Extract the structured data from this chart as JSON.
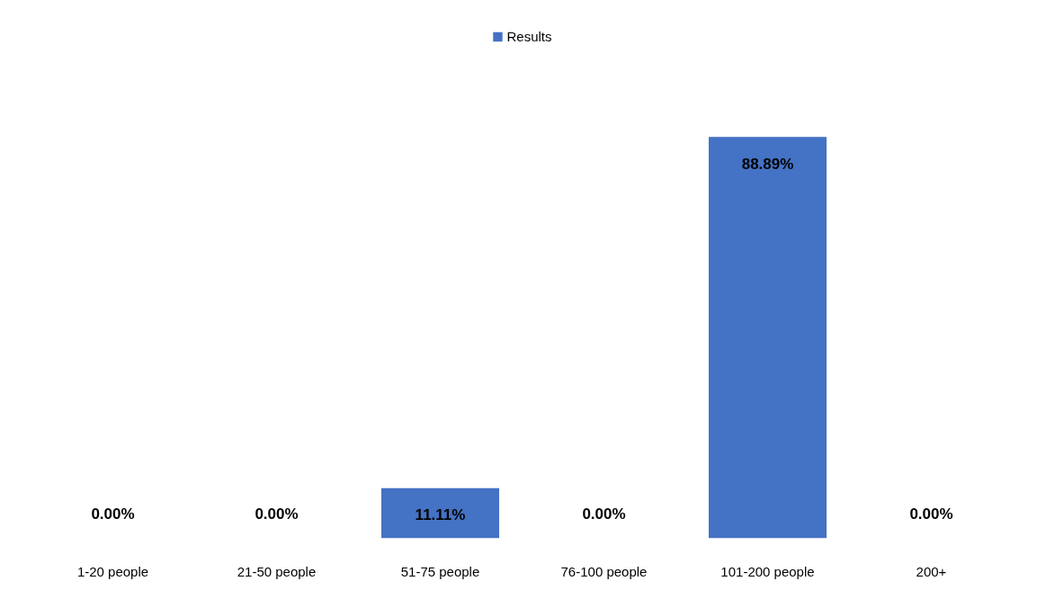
{
  "chart_data": {
    "type": "bar",
    "categories": [
      "1-20 people",
      "21-50 people",
      "51-75 people",
      "76-100 people",
      "101-200 people",
      "200+"
    ],
    "series": [
      {
        "name": "Results",
        "color": "#4472c4",
        "values": [
          0,
          0,
          11.11,
          0,
          88.89,
          0
        ],
        "value_labels": [
          "0.00%",
          "0.00%",
          "11.11%",
          "0.00%",
          "88.89%",
          "0.00%"
        ]
      }
    ],
    "legend": "top",
    "grid": false
  }
}
